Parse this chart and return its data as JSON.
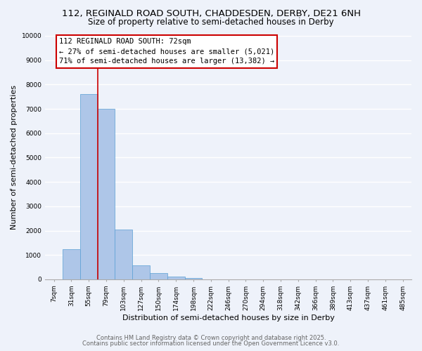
{
  "title_line1": "112, REGINALD ROAD SOUTH, CHADDESDEN, DERBY, DE21 6NH",
  "title_line2": "Size of property relative to semi-detached houses in Derby",
  "xlabel": "Distribution of semi-detached houses by size in Derby",
  "ylabel": "Number of semi-detached properties",
  "bar_labels": [
    "7sqm",
    "31sqm",
    "55sqm",
    "79sqm",
    "103sqm",
    "127sqm",
    "150sqm",
    "174sqm",
    "198sqm",
    "222sqm",
    "246sqm",
    "270sqm",
    "294sqm",
    "318sqm",
    "342sqm",
    "366sqm",
    "389sqm",
    "413sqm",
    "437sqm",
    "461sqm",
    "485sqm"
  ],
  "bar_values": [
    0,
    1250,
    7600,
    7000,
    2050,
    580,
    270,
    100,
    60,
    10,
    0,
    0,
    0,
    0,
    0,
    0,
    0,
    0,
    0,
    0,
    0
  ],
  "bar_color": "#aec6e8",
  "bar_edge_color": "#5a9fd4",
  "vline_x_index": 2.5,
  "vline_color": "#cc0000",
  "ylim": [
    0,
    10000
  ],
  "yticks": [
    0,
    1000,
    2000,
    3000,
    4000,
    5000,
    6000,
    7000,
    8000,
    9000,
    10000
  ],
  "annotation_title": "112 REGINALD ROAD SOUTH: 72sqm",
  "annotation_line1": "← 27% of semi-detached houses are smaller (5,021)",
  "annotation_line2": "71% of semi-detached houses are larger (13,382) →",
  "annotation_box_color": "#ffffff",
  "annotation_box_edge": "#cc0000",
  "footer_line1": "Contains HM Land Registry data © Crown copyright and database right 2025.",
  "footer_line2": "Contains public sector information licensed under the Open Government Licence v3.0.",
  "bg_color": "#eef2fa",
  "grid_color": "#ffffff",
  "title_fontsize": 9.5,
  "subtitle_fontsize": 8.5,
  "tick_fontsize": 6.5,
  "axis_label_fontsize": 8,
  "annotation_fontsize": 7.5,
  "footer_fontsize": 6.0
}
